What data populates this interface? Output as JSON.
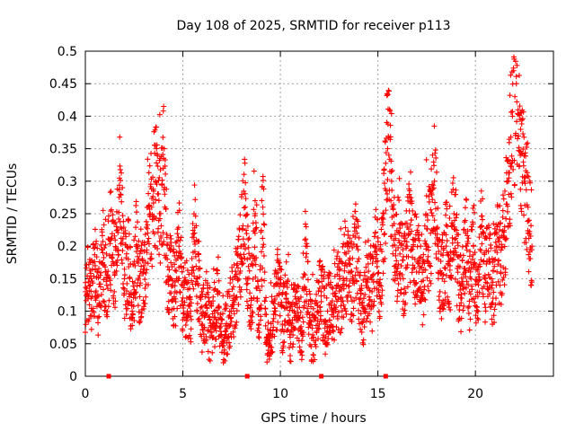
{
  "chart_data": {
    "type": "scatter",
    "title": "Day 108 of 2025, SRMTID for receiver p113",
    "xlabel": "GPS time / hours",
    "ylabel": "SRMTID / TECUs",
    "xlim": [
      0,
      24
    ],
    "ylim": [
      0,
      0.5
    ],
    "x_ticks": [
      0,
      5,
      10,
      15,
      20
    ],
    "x_tick_labels": [
      "0",
      "5",
      "10",
      "15",
      "20"
    ],
    "y_ticks": [
      0,
      0.05,
      0.1,
      0.15,
      0.2,
      0.25,
      0.3,
      0.35,
      0.4,
      0.45,
      0.5
    ],
    "y_tick_labels": [
      "0",
      "0.05",
      "0.1",
      "0.15",
      "0.2",
      "0.25",
      "0.3",
      "0.35",
      "0.4",
      "0.45",
      "0.5"
    ],
    "grid": true,
    "marker": "+",
    "series": [
      {
        "name": "SRMTID",
        "color": "#ff0000",
        "x": [
          0.0,
          0.2,
          0.3,
          0.5,
          0.7,
          0.9,
          1.1,
          1.3,
          1.5,
          1.6,
          1.8,
          2.0,
          2.2,
          2.4,
          2.6,
          2.8,
          3.0,
          3.2,
          3.4,
          3.6,
          3.8,
          4.0,
          4.2,
          4.4,
          4.6,
          4.8,
          5.0,
          5.2,
          5.4,
          5.6,
          5.8,
          6.0,
          6.2,
          6.4,
          6.6,
          6.8,
          7.0,
          7.2,
          7.4,
          7.6,
          7.8,
          8.0,
          8.2,
          8.3,
          8.5,
          8.7,
          8.9,
          9.1,
          9.3,
          9.5,
          9.7,
          9.9,
          10.1,
          10.3,
          10.5,
          10.7,
          10.9,
          11.1,
          11.3,
          11.5,
          11.7,
          11.9,
          12.1,
          12.3,
          12.5,
          12.7,
          12.9,
          13.1,
          13.3,
          13.5,
          13.7,
          13.9,
          14.1,
          14.3,
          14.5,
          14.7,
          14.9,
          15.1,
          15.3,
          15.5,
          15.7,
          15.9,
          16.1,
          16.3,
          16.5,
          16.7,
          16.9,
          17.1,
          17.3,
          17.5,
          17.7,
          17.9,
          18.1,
          18.3,
          18.5,
          18.7,
          18.9,
          19.1,
          19.3,
          19.5,
          19.7,
          19.9,
          20.1,
          20.3,
          20.5,
          20.7,
          20.9,
          21.1,
          21.3,
          21.5,
          21.7,
          21.9,
          22.1,
          22.3,
          22.5,
          22.7,
          22.9
        ],
        "y": [
          0.13,
          0.15,
          0.12,
          0.17,
          0.11,
          0.19,
          0.14,
          0.21,
          0.16,
          0.23,
          0.28,
          0.15,
          0.18,
          0.1,
          0.2,
          0.14,
          0.17,
          0.22,
          0.26,
          0.3,
          0.25,
          0.32,
          0.18,
          0.15,
          0.13,
          0.2,
          0.11,
          0.12,
          0.1,
          0.22,
          0.14,
          0.08,
          0.11,
          0.06,
          0.09,
          0.13,
          0.05,
          0.07,
          0.1,
          0.12,
          0.15,
          0.2,
          0.26,
          0.18,
          0.12,
          0.22,
          0.08,
          0.26,
          0.05,
          0.07,
          0.1,
          0.15,
          0.08,
          0.12,
          0.06,
          0.1,
          0.09,
          0.07,
          0.2,
          0.08,
          0.06,
          0.1,
          0.13,
          0.08,
          0.11,
          0.1,
          0.14,
          0.12,
          0.17,
          0.16,
          0.15,
          0.2,
          0.12,
          0.1,
          0.15,
          0.13,
          0.2,
          0.14,
          0.25,
          0.35,
          0.3,
          0.17,
          0.22,
          0.15,
          0.2,
          0.24,
          0.18,
          0.16,
          0.12,
          0.2,
          0.22,
          0.3,
          0.18,
          0.15,
          0.2,
          0.17,
          0.25,
          0.16,
          0.12,
          0.22,
          0.13,
          0.2,
          0.1,
          0.23,
          0.15,
          0.18,
          0.12,
          0.2,
          0.16,
          0.23,
          0.3,
          0.4,
          0.45,
          0.34,
          0.3,
          0.26,
          0.2
        ],
        "zero_points_x": [
          1.2,
          8.3,
          12.1,
          15.4
        ]
      }
    ]
  }
}
